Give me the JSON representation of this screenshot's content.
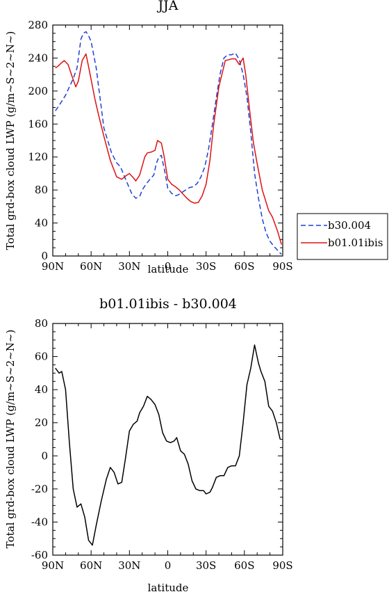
{
  "chart_data": [
    {
      "type": "line",
      "title": "JJA",
      "xlabel": "latitude",
      "ylabel": "Total grd-box cloud LWP (g/m~S~2~N~)",
      "xlim": [
        -90,
        90
      ],
      "ylim": [
        0,
        280
      ],
      "xtick_labels": [
        "90N",
        "60N",
        "30N",
        "0",
        "30S",
        "60S",
        "90S"
      ],
      "ytick_labels": [
        "0",
        "40",
        "80",
        "120",
        "160",
        "200",
        "240",
        "280"
      ],
      "legend": "right",
      "grid": false,
      "series": [
        {
          "name": "b30.004",
          "color": "#1f3fd8",
          "dash": "dashed",
          "x": [
            -88,
            -84,
            -80,
            -77,
            -74,
            -71,
            -68,
            -66,
            -64,
            -62,
            -60,
            -56,
            -50,
            -44,
            -40,
            -37,
            -33,
            -28,
            -25,
            -22,
            -20,
            -17,
            -14,
            -11,
            -9,
            -7,
            -5,
            -2,
            0,
            3,
            6,
            8,
            11,
            14,
            17,
            20,
            23,
            26,
            29,
            32,
            35,
            38,
            41,
            44,
            47,
            50,
            53,
            56,
            59,
            62,
            65,
            68,
            71,
            74,
            77,
            80,
            83,
            86,
            89
          ],
          "y": [
            176,
            185,
            195,
            205,
            215,
            228,
            263,
            270,
            272,
            267,
            260,
            228,
            155,
            125,
            113,
            108,
            93,
            75,
            70,
            72,
            80,
            87,
            93,
            98,
            112,
            120,
            122,
            100,
            82,
            76,
            73,
            74,
            77,
            80,
            83,
            84,
            88,
            96,
            108,
            130,
            160,
            192,
            221,
            240,
            244,
            244,
            246,
            238,
            220,
            193,
            150,
            100,
            70,
            45,
            28,
            18,
            12,
            7,
            2
          ]
        },
        {
          "name": "b01.01ibis",
          "color": "#dd1111",
          "dash": "solid",
          "x": [
            -88,
            -86,
            -84,
            -81,
            -78,
            -75,
            -72,
            -70,
            -67,
            -64,
            -61,
            -57,
            -54,
            -50,
            -45,
            -40,
            -36,
            -33,
            -30,
            -27,
            -25,
            -22,
            -18,
            -16,
            -13,
            -10,
            -8,
            -5,
            -3,
            0,
            3,
            6,
            9,
            12,
            15,
            18,
            21,
            24,
            27,
            30,
            33,
            36,
            40,
            45,
            48,
            50,
            53,
            56,
            59,
            61,
            64,
            67,
            70,
            74,
            79,
            82,
            86,
            89
          ],
          "y": [
            228,
            230,
            233,
            237,
            232,
            218,
            205,
            212,
            237,
            245,
            222,
            190,
            170,
            145,
            116,
            96,
            93,
            97,
            100,
            95,
            91,
            98,
            120,
            125,
            126,
            128,
            140,
            137,
            122,
            93,
            87,
            84,
            80,
            75,
            70,
            66,
            64,
            65,
            73,
            87,
            116,
            160,
            205,
            237,
            238,
            239,
            239,
            232,
            240,
            220,
            178,
            138,
            112,
            80,
            55,
            47,
            30,
            14
          ]
        }
      ]
    },
    {
      "type": "line",
      "title": "b01.01ibis - b30.004",
      "xlabel": "latitude",
      "ylabel": "Total grd-box cloud LWP (g/m~S~2~N~)",
      "xlim": [
        -90,
        90
      ],
      "ylim": [
        -60,
        80
      ],
      "xtick_labels": [
        "90N",
        "60N",
        "30N",
        "0",
        "30S",
        "60S",
        "90S"
      ],
      "ytick_labels": [
        "-60",
        "-40",
        "-20",
        "0",
        "20",
        "40",
        "60",
        "80"
      ],
      "grid": false,
      "series": [
        {
          "color": "#000000",
          "dash": "solid",
          "x": [
            -88,
            -85,
            -83,
            -80,
            -77,
            -74,
            -71,
            -68,
            -65,
            -62,
            -59,
            -56,
            -52,
            -48,
            -45,
            -42,
            -39,
            -36,
            -33,
            -30,
            -27,
            -24,
            -22,
            -19,
            -16,
            -13,
            -10,
            -7,
            -4,
            -1,
            2,
            5,
            7,
            10,
            13,
            16,
            19,
            22,
            25,
            28,
            30,
            33,
            35,
            38,
            41,
            44,
            47,
            50,
            53,
            56,
            59,
            62,
            65,
            68,
            71,
            73,
            76,
            79,
            82,
            85,
            88
          ],
          "y": [
            53,
            50,
            51,
            40,
            8,
            -20,
            -31,
            -29,
            -37,
            -51,
            -54,
            -42,
            -27,
            -14,
            -7,
            -10,
            -17,
            -16,
            -1,
            15,
            19,
            21,
            26,
            30,
            36,
            34,
            31,
            25,
            14,
            9,
            8,
            9,
            11,
            3,
            1,
            -5,
            -15,
            -20,
            -21,
            -21,
            -23,
            -22,
            -19,
            -13,
            -12,
            -12,
            -7,
            -6,
            -6,
            0,
            20,
            43,
            53,
            67,
            56,
            51,
            45,
            30,
            27,
            20,
            10
          ]
        }
      ]
    }
  ]
}
